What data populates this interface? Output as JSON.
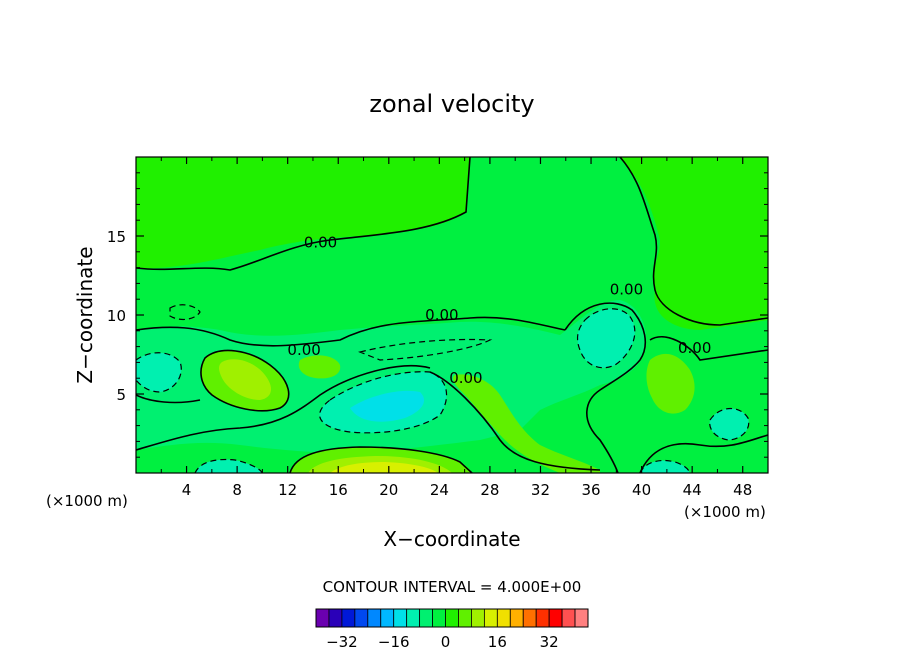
{
  "chart_data": {
    "type": "contour",
    "title": "zonal velocity",
    "xlabel": "X−coordinate",
    "ylabel": "Z−coordinate",
    "x_unit_label": "(×1000 m)",
    "z_unit_label": "(×1000 m)",
    "xlim": [
      0,
      50
    ],
    "ylim": [
      0,
      20
    ],
    "x_ticks": [
      4,
      8,
      12,
      16,
      20,
      24,
      28,
      32,
      36,
      40,
      44,
      48
    ],
    "y_ticks": [
      5,
      10,
      15
    ],
    "contour_labels": [
      {
        "text": "0.00",
        "x": 14.6,
        "z": 14.6
      },
      {
        "text": "0.00",
        "x": 24.2,
        "z": 10.0
      },
      {
        "text": "0.00",
        "x": 13.3,
        "z": 7.8
      },
      {
        "text": "0.00",
        "x": 26.1,
        "z": 6.0
      },
      {
        "text": "0.00",
        "x": 38.8,
        "z": 11.6
      },
      {
        "text": "0.00",
        "x": 44.2,
        "z": 7.9
      }
    ],
    "contour_interval_text": "CONTOUR INTERVAL = 4.000E+00",
    "colorbar": {
      "colors": [
        "#6a00b0",
        "#2a00b8",
        "#0018d8",
        "#0048f0",
        "#0088ff",
        "#00b8ff",
        "#00e0e8",
        "#00f0b0",
        "#00f070",
        "#00f040",
        "#20f000",
        "#60f000",
        "#a0f000",
        "#d8f000",
        "#f0e000",
        "#ffb000",
        "#ff7000",
        "#ff3000",
        "#ff0000",
        "#ff5050",
        "#ff8080"
      ],
      "tick_labels": [
        "−32",
        "−16",
        "0",
        "16",
        "32"
      ],
      "tick_values": [
        -32,
        -16,
        0,
        16,
        32
      ],
      "vmin": -40,
      "vmax": 44
    }
  }
}
